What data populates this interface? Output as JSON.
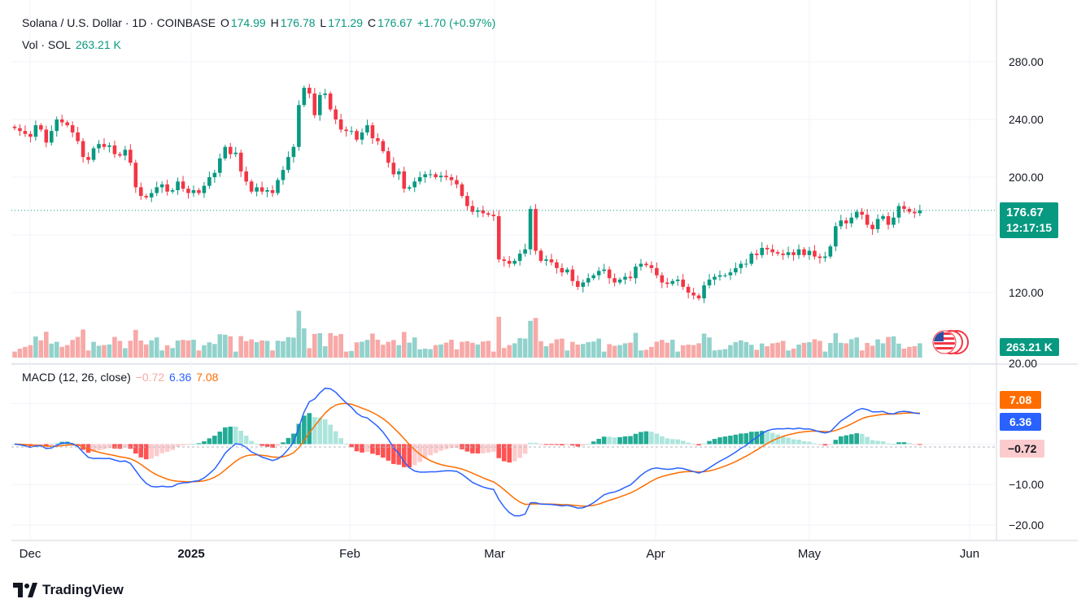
{
  "header": {
    "symbol_line": "Solana / U.S. Dollar · 1D · COINBASE",
    "o_label": "O",
    "o_value": "174.99",
    "h_label": "H",
    "h_value": "176.78",
    "l_label": "L",
    "l_value": "171.29",
    "c_label": "C",
    "c_value": "176.67",
    "change": "+1.70 (+0.97%)",
    "vol_label": "Vol · SOL",
    "vol_value": "263.21 K"
  },
  "macd_header": {
    "label": "MACD (12, 26, close)",
    "hist": "−0.72",
    "macd": "6.36",
    "signal": "7.08"
  },
  "price_tag": {
    "price": "176.67",
    "countdown": "12:17:15"
  },
  "volume_tag": "263.21 K",
  "macd_tags": {
    "signal": "7.08",
    "macd": "6.36",
    "hist": "−0.72"
  },
  "branding": "TradingView",
  "colors": {
    "up": "#089981",
    "down": "#f23645",
    "macd": "#2962ff",
    "signal": "#ff6d00",
    "vol_up": "#92d2cc",
    "vol_down": "#f7a9a7"
  },
  "chart_data": [
    {
      "type": "candlestick",
      "title": "Solana / U.S. Dollar · 1D · COINBASE",
      "price_ticks": [
        "280.00",
        "240.00",
        "200.00",
        "120.00"
      ],
      "ylim": [
        107,
        300
      ],
      "date_labels": [
        "Dec",
        "2025",
        "Feb",
        "Mar",
        "Apr",
        "May",
        "Jun"
      ],
      "daily_closes_from_2024-11-27": [
        234,
        232,
        230,
        228,
        236,
        233,
        224,
        232,
        240,
        238,
        236,
        231,
        225,
        214,
        212,
        220,
        223,
        221,
        222,
        216,
        215,
        219,
        210,
        193,
        187,
        186,
        189,
        193,
        195,
        190,
        191,
        197,
        192,
        189,
        191,
        189,
        194,
        200,
        203,
        213,
        221,
        216,
        217,
        204,
        197,
        190,
        193,
        190,
        191,
        189,
        198,
        205,
        214,
        221,
        250,
        262,
        258,
        243,
        257,
        258,
        247,
        240,
        233,
        232,
        232,
        226,
        231,
        236,
        227,
        225,
        218,
        210,
        202,
        204,
        192,
        193,
        197,
        200,
        202,
        202,
        200,
        201,
        200,
        198,
        195,
        187,
        180,
        176,
        177,
        175,
        174,
        173,
        143,
        142,
        140,
        142,
        147,
        150,
        178,
        149,
        142,
        143,
        141,
        137,
        134,
        136,
        128,
        124,
        127,
        130,
        132,
        135,
        136,
        130,
        127,
        129,
        131,
        130,
        138,
        140,
        139,
        137,
        132,
        127,
        126,
        128,
        129,
        124,
        120,
        118,
        116,
        125,
        129,
        131,
        132,
        132,
        134,
        137,
        140,
        140,
        147,
        146,
        151,
        150,
        148,
        147,
        146,
        148,
        146,
        150,
        146,
        149,
        145,
        144,
        145,
        152,
        166,
        170,
        168,
        172,
        176,
        174,
        167,
        164,
        171,
        173,
        167,
        172,
        180,
        178,
        176,
        175,
        177
      ],
      "volume_last": "263.21 K"
    },
    {
      "type": "line",
      "title": "MACD (12, 26, close)",
      "yticks": [
        "20.00",
        "−10.00",
        "−20.00"
      ],
      "series": [
        {
          "name": "MACD",
          "last": 6.36
        },
        {
          "name": "Signal",
          "last": 7.08
        },
        {
          "name": "Histogram",
          "last": -0.72
        }
      ]
    }
  ]
}
